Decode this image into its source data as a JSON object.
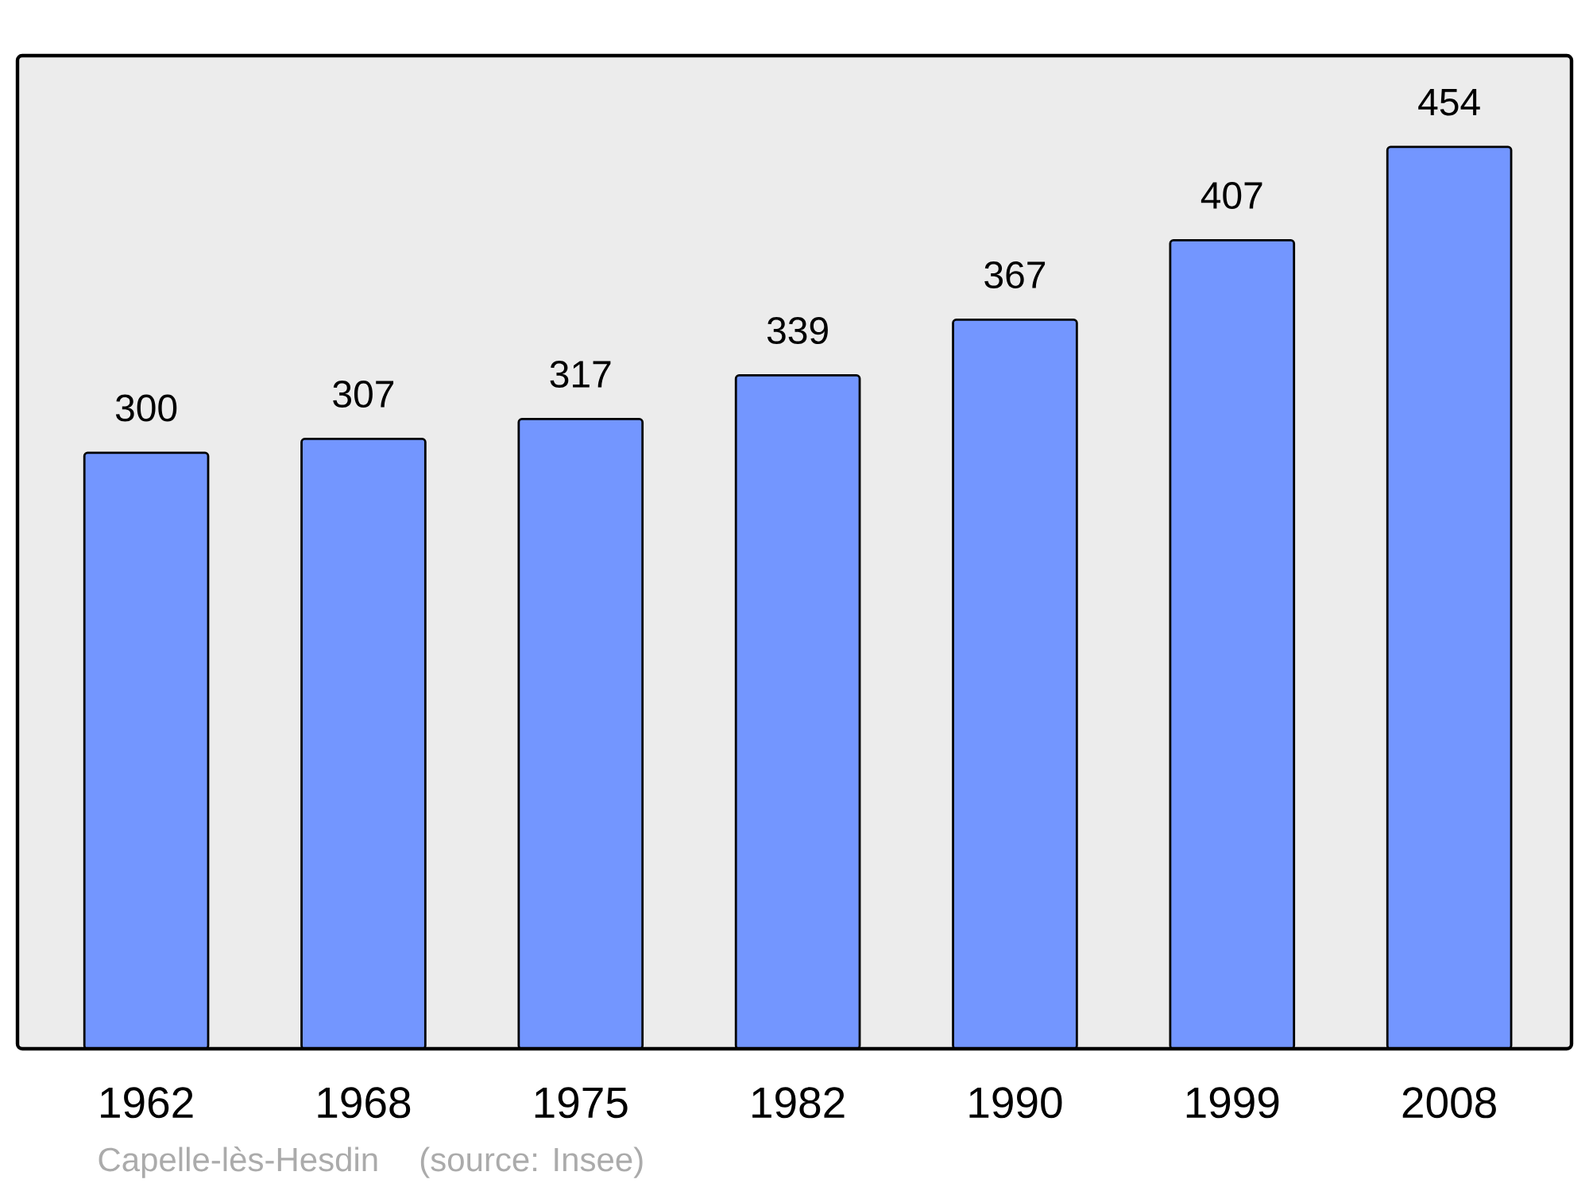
{
  "chart_data": {
    "type": "bar",
    "categories": [
      "1962",
      "1968",
      "1975",
      "1982",
      "1990",
      "1999",
      "2008"
    ],
    "values": [
      300,
      307,
      317,
      339,
      367,
      407,
      454
    ],
    "color": "#7396ff",
    "ylim": [
      0,
      500
    ],
    "data_labels": true,
    "tick_labels": "x",
    "annotations": [
      "Capelle-lès-Hesdin",
      "(source: Insee)"
    ]
  }
}
